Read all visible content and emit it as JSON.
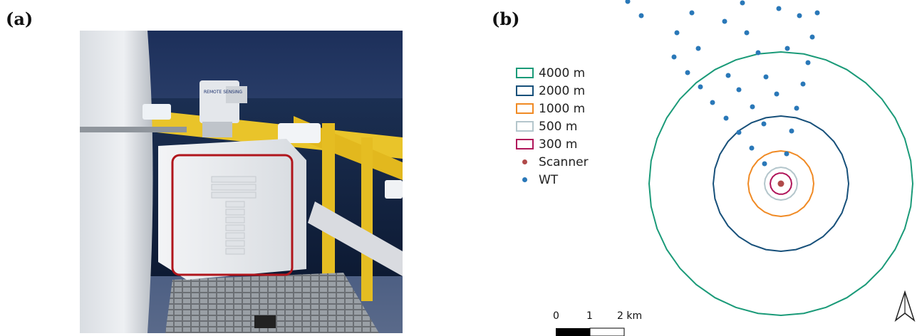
{
  "panels": {
    "a_label": "(a)",
    "b_label": "(b)"
  },
  "photo": {
    "device_logo_text": "REMOTE SENSING"
  },
  "legend": {
    "items": [
      {
        "label": "4000 m",
        "color": "#1a9a78",
        "kind": "ring"
      },
      {
        "label": "2000 m",
        "color": "#17507a",
        "kind": "ring"
      },
      {
        "label": "1000 m",
        "color": "#f08a24",
        "kind": "ring"
      },
      {
        "label": "500 m",
        "color": "#b4c6cc",
        "kind": "ring"
      },
      {
        "label": "300 m",
        "color": "#b0155a",
        "kind": "ring"
      },
      {
        "label": "Scanner",
        "color": "#b04a4a",
        "kind": "point"
      },
      {
        "label": "WT",
        "color": "#2a78b8",
        "kind": "point"
      }
    ]
  },
  "scale_bar": {
    "labels": [
      "0",
      "1",
      "2 km"
    ]
  },
  "north_arrow": {
    "icon": "north-arrow-icon"
  }
}
